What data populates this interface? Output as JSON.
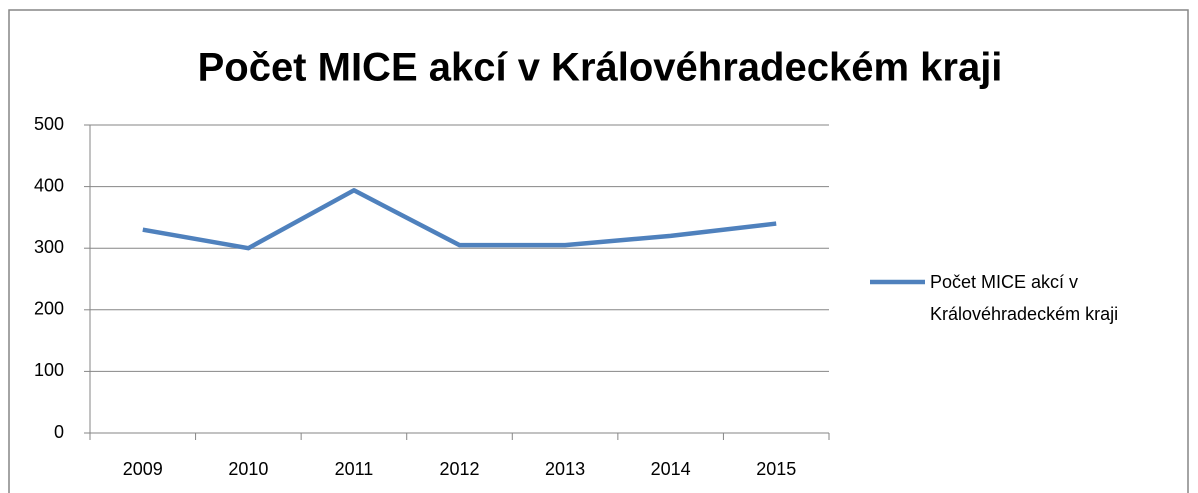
{
  "chart_data": {
    "type": "line",
    "title": "Počet MICE akcí v Královéhradeckém kraji",
    "categories": [
      "2009",
      "2010",
      "2011",
      "2012",
      "2013",
      "2014",
      "2015"
    ],
    "series": [
      {
        "name": "Počet MICE akcí v Královéhradeckém kraji",
        "color": "#4f81bd",
        "values": [
          330,
          300,
          394,
          305,
          305,
          320,
          340
        ]
      }
    ],
    "ylim": [
      0,
      500
    ],
    "yticks": [
      0,
      100,
      200,
      300,
      400,
      500
    ],
    "grid": true,
    "legend": "right"
  }
}
